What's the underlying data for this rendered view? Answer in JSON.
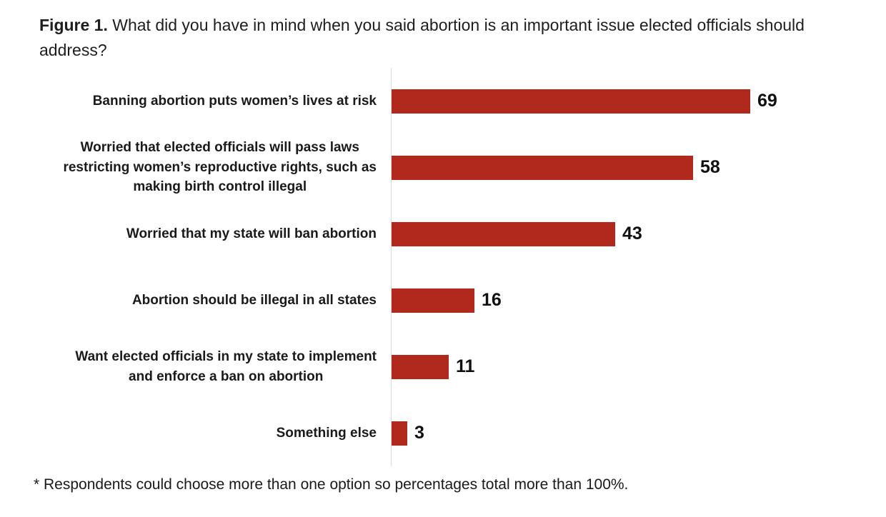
{
  "title": {
    "prefix": "Figure 1.",
    "rest": " What did you have in mind when you said abortion is an important issue elected officials should address?"
  },
  "footnote": "* Respondents could choose more than one option so percentages total more than 100%.",
  "chart_data": {
    "type": "bar",
    "orientation": "horizontal",
    "categories": [
      "Banning abortion puts women’s lives at risk",
      "Worried that elected officials will pass laws\nrestricting women’s reproductive rights, such as\nmaking birth control illegal",
      "Worried that my state will ban abortion",
      "Abortion should be illegal in all states",
      "Want elected officials in my state to implement\nand enforce a ban on abortion",
      "Something else"
    ],
    "values": [
      69,
      58,
      43,
      16,
      11,
      3
    ],
    "unit": "percent",
    "xlim": [
      0,
      69
    ],
    "bar_color": "#B1281C",
    "axis_line_color": "#DCDCDC",
    "value_labels_shown": true,
    "grid": false,
    "legend": false
  }
}
